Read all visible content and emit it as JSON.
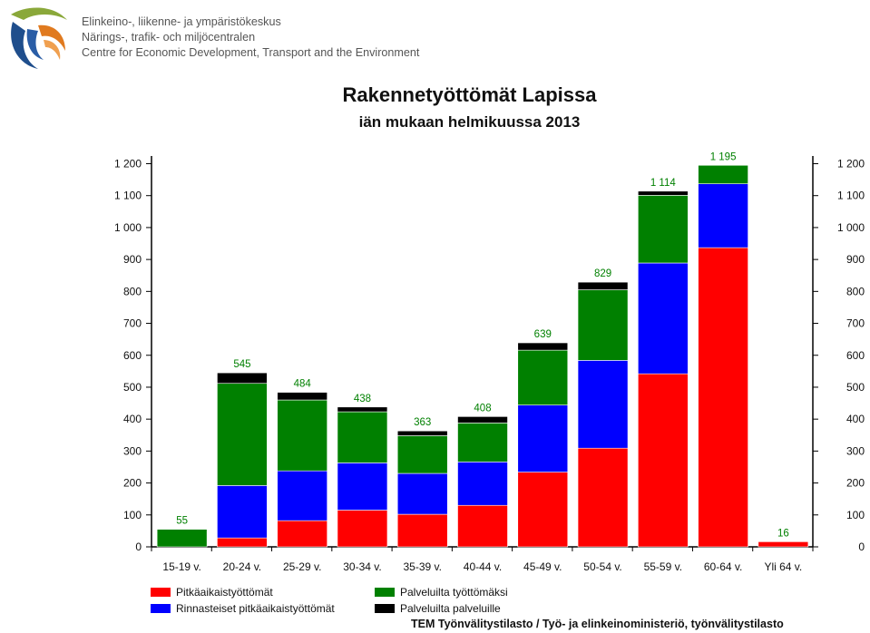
{
  "header": {
    "org_lines": [
      "Elinkeino-, liikenne- ja ympäristökeskus",
      "Närings-, trafik- och miljöcentralen",
      "Centre for Economic Development, Transport and the Environment"
    ],
    "brand_colors": {
      "logo_blue": "#1f4e8c",
      "logo_orange": "#e07a1f",
      "logo_green": "#8aa83a"
    }
  },
  "chart_data": {
    "type": "bar",
    "stacked": true,
    "title": "Rakennetyöttömät Lapissa",
    "subtitle": "iän mukaan helmikuussa 2013",
    "categories": [
      "15-19 v.",
      "20-24 v.",
      "25-29 v.",
      "30-34 v.",
      "35-39 v.",
      "40-44 v.",
      "45-49 v.",
      "50-54 v.",
      "55-59 v.",
      "60-64 v.",
      "Yli 64 v."
    ],
    "series": [
      {
        "name": "Pitkäaikaistyöttömät",
        "color": "#ff0000",
        "values": [
          0,
          28,
          82,
          115,
          102,
          130,
          234,
          309,
          542,
          937,
          16
        ]
      },
      {
        "name": "Rinnasteiset pitkäaikaistyöttömät",
        "color": "#0000ff",
        "values": [
          0,
          164,
          156,
          148,
          128,
          136,
          210,
          275,
          347,
          200,
          0
        ]
      },
      {
        "name": "Palveluilta työttömäksi",
        "color": "#008000",
        "values": [
          55,
          320,
          222,
          160,
          118,
          122,
          172,
          221,
          212,
          58,
          0
        ]
      },
      {
        "name": "Palveluilta palveluille",
        "color": "#000000",
        "values": [
          0,
          33,
          24,
          15,
          15,
          20,
          23,
          24,
          13,
          0,
          0
        ]
      }
    ],
    "totals": [
      55,
      545,
      484,
      438,
      363,
      408,
      639,
      829,
      1114,
      1195,
      16
    ],
    "total_labels": [
      "55",
      "545",
      "484",
      "438",
      "363",
      "408",
      "639",
      "829",
      "1 114",
      "1 195",
      "16"
    ],
    "total_label_color": "#008000",
    "ylim": [
      0,
      1200
    ],
    "yticks": [
      0,
      100,
      200,
      300,
      400,
      500,
      600,
      700,
      800,
      900,
      1000,
      1100,
      1200
    ],
    "ytick_labels": [
      "0",
      "100",
      "200",
      "300",
      "400",
      "500",
      "600",
      "700",
      "800",
      "900",
      "1 000",
      "1 100",
      "1 200"
    ],
    "secondary_axis": true,
    "grid": false,
    "legend_placement": "bottom-left",
    "xlabel": "",
    "ylabel": ""
  },
  "source": "TEM Työnvälitystilasto / Työ- ja elinkeinoministeriö, työnvälitystilasto"
}
